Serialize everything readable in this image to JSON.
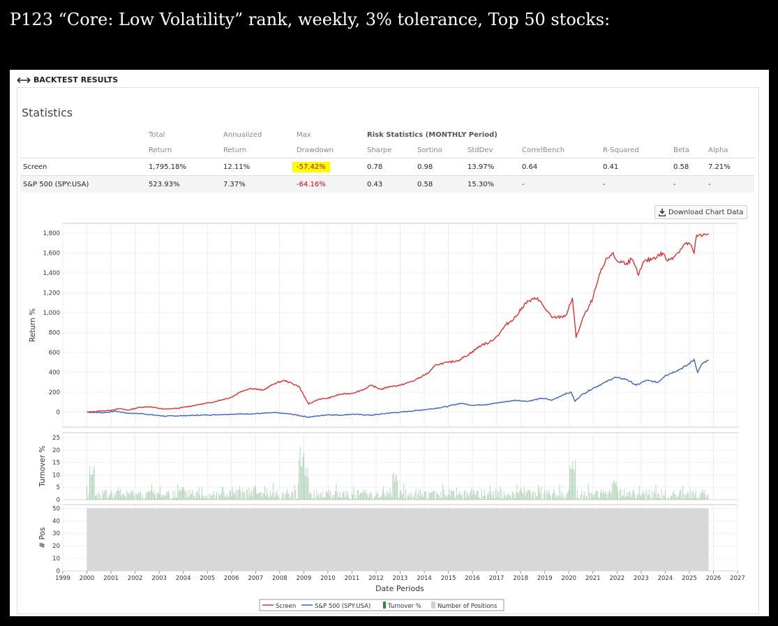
{
  "headline": "P123 “Core: Low Volatility” rank, weekly, 3% tolerance, Top 50 stocks:",
  "panel": {
    "header_label": "BACKTEST RESULTS",
    "section_title": "Statistics",
    "download_label": "Download Chart Data"
  },
  "stats": {
    "group_header": "Risk Statistics (MONTHLY Period)",
    "headers_top": [
      "",
      "Total",
      "Annualized",
      "Max"
    ],
    "headers_bottom": [
      "",
      "Return",
      "Return",
      "Drawdown",
      "Sharpe",
      "Sortino",
      "StdDev",
      "CorrelBench",
      "R-Squared",
      "Beta",
      "Alpha"
    ],
    "rows": [
      {
        "name": "Screen",
        "cells": [
          "1,795.18%",
          "12.11%",
          "-57.42%",
          "0.78",
          "0.98",
          "13.97%",
          "0.64",
          "0.41",
          "0.58",
          "7.21%"
        ]
      },
      {
        "name": "S&P 500 (SPY:USA)",
        "cells": [
          "523.93%",
          "7.37%",
          "-64.16%",
          "0.43",
          "0.58",
          "15.30%",
          "-",
          "-",
          "-",
          "-"
        ]
      }
    ]
  },
  "chart_data": {
    "type": "line",
    "title": "",
    "xlabel": "Date Periods",
    "x_ticks": [
      "1999",
      "2000",
      "2001",
      "2002",
      "2003",
      "2004",
      "2005",
      "2006",
      "2007",
      "2008",
      "2009",
      "2010",
      "2011",
      "2012",
      "2013",
      "2014",
      "2015",
      "2016",
      "2017",
      "2018",
      "2019",
      "2020",
      "2021",
      "2022",
      "2023",
      "2024",
      "2025",
      "2026",
      "2027"
    ],
    "colors": {
      "screen": "#e03030",
      "benchmark": "#3a62c0",
      "turnover": "#2e8b3d",
      "positions": "#d8d8d8"
    },
    "panels": [
      {
        "name": "returns",
        "ylabel": "Return %",
        "ylim": [
          -150,
          1900
        ],
        "yticks": [
          0,
          200,
          400,
          600,
          800,
          1000,
          1200,
          1400,
          1600,
          1800
        ],
        "ytick_labels": [
          "0",
          "200",
          "400",
          "600",
          "800",
          "1,000",
          "1,200",
          "1,400",
          "1,600",
          "1,800"
        ],
        "series": [
          {
            "name": "Screen",
            "x": [
              2000.0,
              2000.5,
              2001.0,
              2001.4,
              2001.7,
              2002.2,
              2002.6,
              2003.2,
              2003.8,
              2004.5,
              2005.2,
              2006.0,
              2006.4,
              2006.8,
              2007.3,
              2007.8,
              2008.2,
              2008.8,
              2009.2,
              2009.6,
              2010.0,
              2010.5,
              2011.0,
              2011.5,
              2011.8,
              2012.2,
              2012.6,
              2013.0,
              2013.6,
              2014.2,
              2014.5,
              2015.0,
              2015.4,
              2015.7,
              2016.0,
              2016.4,
              2016.7,
              2017.0,
              2017.4,
              2017.8,
              2018.2,
              2018.7,
              2018.9,
              2019.3,
              2019.7,
              2019.9,
              2020.15,
              2020.3,
              2020.6,
              2020.8,
              2021.0,
              2021.3,
              2021.6,
              2021.8,
              2022.0,
              2022.4,
              2022.6,
              2022.9,
              2023.1,
              2023.5,
              2023.9,
              2024.1,
              2024.5,
              2024.8,
              2025.0,
              2025.2,
              2025.3,
              2025.5,
              2025.8
            ],
            "y": [
              0,
              10,
              20,
              35,
              20,
              50,
              55,
              30,
              40,
              70,
              100,
              150,
              210,
              240,
              220,
              290,
              320,
              260,
              80,
              130,
              140,
              180,
              190,
              230,
              270,
              230,
              260,
              270,
              320,
              400,
              480,
              500,
              520,
              560,
              610,
              680,
              700,
              760,
              880,
              960,
              1100,
              1150,
              1080,
              950,
              960,
              980,
              1150,
              750,
              960,
              1040,
              1150,
              1400,
              1550,
              1600,
              1520,
              1500,
              1540,
              1380,
              1510,
              1550,
              1600,
              1520,
              1600,
              1690,
              1700,
              1600,
              1780,
              1770,
              1795
            ]
          },
          {
            "name": "S&P 500 (SPY:USA)",
            "x": [
              2000.0,
              2000.7,
              2001.2,
              2001.7,
              2002.3,
              2002.8,
              2003.3,
              2004.0,
              2005.0,
              2006.0,
              2007.0,
              2007.8,
              2008.5,
              2009.2,
              2010.0,
              2010.5,
              2011.0,
              2011.8,
              2012.5,
              2013.0,
              2013.8,
              2014.5,
              2015.0,
              2015.5,
              2016.0,
              2016.7,
              2017.2,
              2017.8,
              2018.3,
              2018.9,
              2019.3,
              2019.8,
              2020.1,
              2020.25,
              2020.5,
              2021.0,
              2021.5,
              2021.9,
              2022.4,
              2022.8,
              2023.2,
              2023.7,
              2024.0,
              2024.5,
              2024.9,
              2025.2,
              2025.35,
              2025.5,
              2025.8
            ],
            "y": [
              0,
              -5,
              10,
              -10,
              -15,
              -30,
              -40,
              -35,
              -28,
              -20,
              -15,
              -5,
              -20,
              -50,
              -25,
              -30,
              -20,
              -30,
              -10,
              0,
              20,
              40,
              60,
              90,
              70,
              80,
              100,
              120,
              110,
              140,
              120,
              180,
              200,
              110,
              170,
              240,
              300,
              350,
              330,
              270,
              320,
              300,
              370,
              420,
              470,
              530,
              400,
              480,
              524
            ]
          }
        ]
      },
      {
        "name": "turnover",
        "ylabel": "Turnover %",
        "ylim": [
          0,
          27
        ],
        "yticks": [
          0,
          5,
          10,
          15,
          20,
          25
        ],
        "series": [
          {
            "name": "Turnover %",
            "type": "bar",
            "typical_range": [
              0,
              6
            ],
            "notable_peaks": [
              {
                "x": 2000.2,
                "y": 14
              },
              {
                "x": 2008.9,
                "y": 22
              },
              {
                "x": 2009.1,
                "y": 14
              },
              {
                "x": 2012.8,
                "y": 11
              },
              {
                "x": 2020.15,
                "y": 16
              },
              {
                "x": 2021.9,
                "y": 8
              }
            ]
          }
        ]
      },
      {
        "name": "positions",
        "ylabel": "# Pos",
        "ylim": [
          0,
          53
        ],
        "yticks": [
          0,
          10,
          20,
          30,
          40,
          50
        ],
        "series": [
          {
            "name": "Number of Positions",
            "type": "area",
            "x": [
              2000.0,
              2025.8
            ],
            "y": [
              50,
              50
            ]
          }
        ]
      }
    ],
    "legend": [
      "Screen",
      "S&P 500 (SPY:USA)",
      "Turnover %",
      "Number of Positions"
    ],
    "legend_position": "bottom-center"
  }
}
